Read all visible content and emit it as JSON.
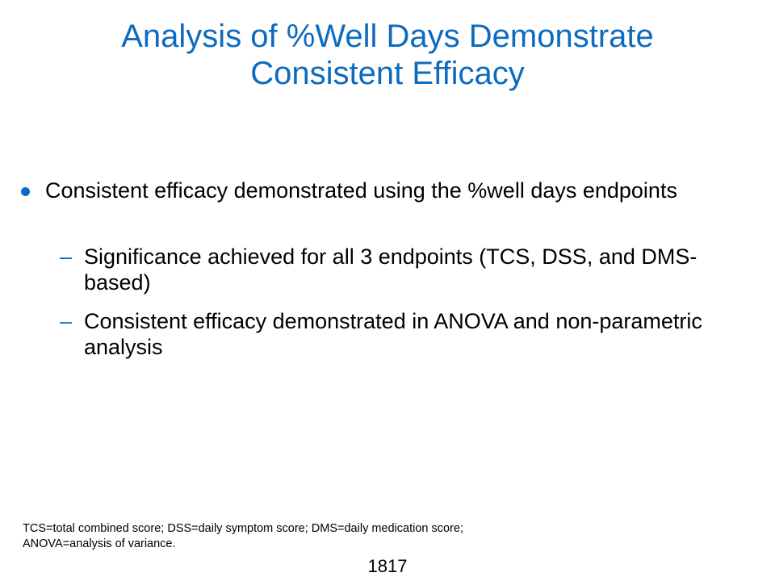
{
  "slide": {
    "title_lines": [
      "Analysis of %Well Days Demonstrate",
      "Consistent Efficacy"
    ],
    "bullets": [
      {
        "text": "Consistent efficacy demonstrated using the %well days endpoints",
        "sub_bullets": [
          {
            "marker": "–",
            "text": "Significance achieved for all 3 endpoints (TCS, DSS, and DMS-based)"
          },
          {
            "marker": "–",
            "text": "Consistent efficacy demonstrated in ANOVA and non-parametric analysis"
          }
        ]
      }
    ],
    "footnote_lines": [
      "TCS=total combined score; DSS=daily symptom score; DMS=daily medication score;",
      "ANOVA=analysis of variance."
    ],
    "page_number": "1817"
  },
  "colors": {
    "accent": "#0d6bbf",
    "text": "#000000",
    "background": "#ffffff"
  }
}
